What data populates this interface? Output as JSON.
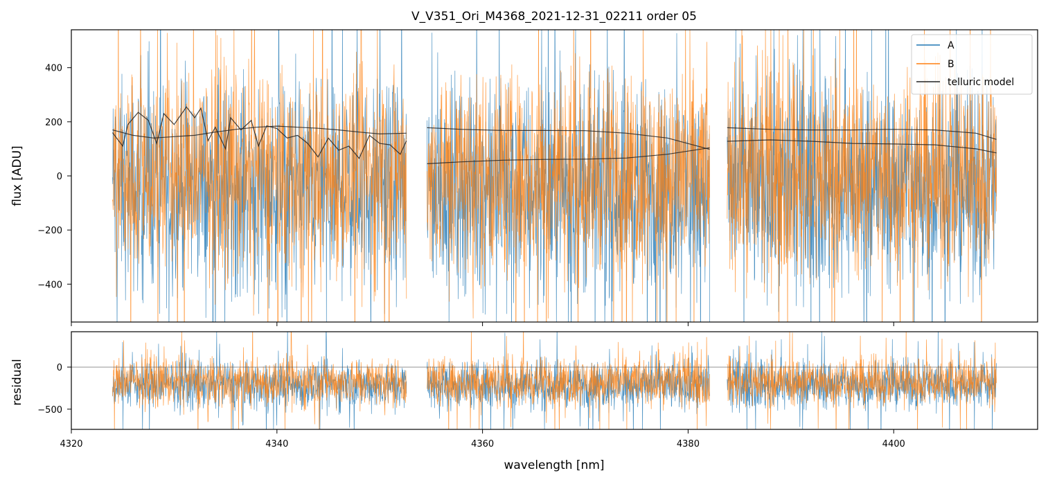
{
  "chart_data": [
    {
      "type": "line",
      "panel": "main",
      "title": "V_V351_Ori_M4368_2021-12-31_02211  order 05",
      "xlabel": "",
      "ylabel": "flux [ADU]",
      "xlim": [
        4320,
        4414
      ],
      "ylim": [
        -540,
        540
      ],
      "xticks": [
        4320,
        4340,
        4360,
        4380,
        4400
      ],
      "yticks": [
        -400,
        -200,
        0,
        200,
        400
      ],
      "ytick_labels": [
        "−400",
        "−200",
        "0",
        "200",
        "400"
      ],
      "legend": {
        "placement": "top-right",
        "entries": [
          "A",
          "B",
          "telluric model"
        ]
      },
      "segments_x": [
        [
          4324.0,
          4352.6
        ],
        [
          4354.6,
          4382.1
        ],
        [
          4383.8,
          4410.0
        ]
      ],
      "series": [
        {
          "name": "A",
          "color": "#1f77b4",
          "center": -40,
          "spread": 560,
          "note_shape": "noisy spectrum"
        },
        {
          "name": "B",
          "color": "#ff7f0e",
          "center": 10,
          "spread": 560
        },
        {
          "name": "telluric model",
          "color": "#222222",
          "lines": [
            {
              "x": [
                4324.0,
                4326.0,
                4328.0,
                4330.0,
                4332.0,
                4334.0,
                4336.0,
                4338.0,
                4340.0,
                4342.0,
                4344.0,
                4346.0,
                4348.0,
                4350.0,
                4352.6
              ],
              "y": [
                170,
                150,
                140,
                145,
                150,
                162,
                172,
                180,
                184,
                180,
                176,
                170,
                162,
                155,
                158
              ]
            },
            {
              "x": [
                4324.0,
                4325.0,
                4325.5,
                4326.5,
                4327.5,
                4328.3,
                4329.0,
                4330.0,
                4331.2,
                4332.0,
                4332.6,
                4333.3,
                4334.0,
                4335.0,
                4335.5,
                4336.5,
                4337.5,
                4338.2,
                4339.0,
                4340.0,
                4341.0,
                4342.0,
                4343.0,
                4344.0,
                4345.0,
                4346.0,
                4347.0,
                4348.0,
                4349.0,
                4350.0,
                4351.0,
                4352.0,
                4352.6
              ],
              "y": [
                160,
                110,
                190,
                235,
                205,
                120,
                230,
                190,
                255,
                215,
                250,
                130,
                180,
                100,
                215,
                170,
                205,
                110,
                185,
                175,
                140,
                150,
                120,
                70,
                140,
                95,
                110,
                65,
                150,
                120,
                115,
                80,
                130
              ]
            },
            {
              "x": [
                4354.6,
                4358.0,
                4362.0,
                4366.0,
                4370.0,
                4374.0,
                4378.0,
                4382.1
              ],
              "y": [
                178,
                172,
                168,
                168,
                167,
                158,
                140,
                98
              ]
            },
            {
              "x": [
                4354.6,
                4358.0,
                4362.0,
                4366.0,
                4370.0,
                4374.0,
                4378.0,
                4382.1
              ],
              "y": [
                45,
                52,
                58,
                61,
                62,
                66,
                80,
                104
              ]
            },
            {
              "x": [
                4383.8,
                4388.0,
                4392.0,
                4396.0,
                4400.0,
                4404.0,
                4408.0,
                4410.0
              ],
              "y": [
                178,
                172,
                170,
                170,
                172,
                170,
                158,
                135
              ]
            },
            {
              "x": [
                4383.8,
                4388.0,
                4392.0,
                4396.0,
                4400.0,
                4404.0,
                4408.0,
                4410.0
              ],
              "y": [
                128,
                133,
                128,
                120,
                118,
                115,
                100,
                85
              ]
            }
          ]
        }
      ]
    },
    {
      "type": "line",
      "panel": "residual",
      "xlabel": "wavelength [nm]",
      "ylabel": "residual",
      "xlim": [
        4320,
        4414
      ],
      "ylim": [
        -740,
        420
      ],
      "xticks": [
        4320,
        4340,
        4360,
        4380,
        4400
      ],
      "xtick_labels": [
        "4320",
        "4340",
        "4360",
        "4380",
        "4400"
      ],
      "yticks": [
        -500,
        0
      ],
      "ytick_labels": [
        "−500",
        "0"
      ],
      "zero_line": 0,
      "series": [
        {
          "name": "A",
          "color": "#1f77b4",
          "center": -210,
          "spread": 420
        },
        {
          "name": "B",
          "color": "#ff7f0e",
          "center": -170,
          "spread": 420
        }
      ]
    }
  ]
}
